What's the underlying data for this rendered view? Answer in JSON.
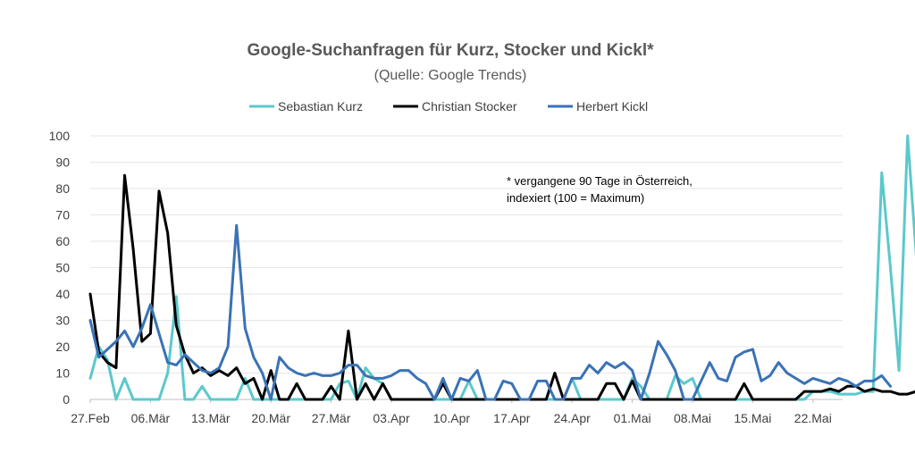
{
  "chart_data": {
    "type": "line",
    "title": "Google-Suchanfragen für Kurz, Stocker und Kickl*",
    "subtitle": "(Quelle: Google Trends)",
    "note_lines": [
      "* vergangene 90 Tage in Österreich,",
      "indexiert (100 = Maximum)"
    ],
    "x_tick_labels": [
      "27.Feb",
      "06.Mär",
      "13.Mär",
      "20.Mär",
      "27.Mär",
      "03.Apr",
      "10.Apr",
      "17.Apr",
      "24.Apr",
      "01.Mai",
      "08.Mai",
      "15.Mai",
      "22.Mai"
    ],
    "x_tick_step_days": 7,
    "ylim": [
      0,
      100
    ],
    "y_ticks": [
      0,
      10,
      20,
      30,
      40,
      50,
      60,
      70,
      80,
      90,
      100
    ],
    "grid": true,
    "legend_position": "top",
    "series": [
      {
        "name": "Sebastian Kurz",
        "color": "#5cc8cc",
        "values": [
          8,
          20,
          15,
          0,
          8,
          0,
          0,
          0,
          0,
          10,
          39,
          0,
          0,
          5,
          0,
          0,
          0,
          0,
          8,
          0,
          0,
          0,
          0,
          0,
          0,
          0,
          0,
          0,
          0,
          6,
          7,
          0,
          12,
          8,
          6,
          0,
          0,
          0,
          0,
          0,
          0,
          0,
          0,
          0,
          7,
          0,
          0,
          0,
          0,
          0,
          0,
          0,
          0,
          0,
          0,
          0,
          8,
          0,
          0,
          0,
          0,
          0,
          0,
          8,
          5,
          0,
          0,
          0,
          9,
          6,
          8,
          0,
          0,
          0,
          0,
          0,
          0,
          0,
          0,
          0,
          0,
          0,
          0,
          0,
          3,
          3,
          3,
          2,
          2,
          2,
          3,
          3,
          86,
          50,
          11,
          100,
          55
        ]
      },
      {
        "name": "Christian Stocker",
        "color": "#000000",
        "values": [
          40,
          18,
          14,
          12,
          85,
          57,
          22,
          25,
          79,
          63,
          28,
          17,
          10,
          12,
          9,
          11,
          9,
          12,
          6,
          8,
          0,
          11,
          0,
          0,
          6,
          0,
          0,
          0,
          5,
          0,
          26,
          0,
          6,
          0,
          6,
          0,
          0,
          0,
          0,
          0,
          0,
          6,
          0,
          0,
          0,
          0,
          0,
          0,
          0,
          0,
          0,
          0,
          0,
          0,
          10,
          0,
          0,
          0,
          0,
          0,
          6,
          6,
          0,
          7,
          0,
          0,
          0,
          0,
          0,
          0,
          0,
          0,
          0,
          0,
          0,
          0,
          6,
          0,
          0,
          0,
          0,
          0,
          0,
          3,
          3,
          3,
          4,
          3,
          5,
          5,
          3,
          4,
          3,
          3,
          2,
          2,
          3,
          3
        ]
      },
      {
        "name": "Herbert Kickl",
        "color": "#3a72b5",
        "values": [
          30,
          16,
          19,
          22,
          26,
          20,
          27,
          36,
          25,
          14,
          13,
          17,
          14,
          11,
          10,
          12,
          20,
          66,
          27,
          16,
          10,
          0,
          16,
          12,
          10,
          9,
          10,
          9,
          9,
          10,
          13,
          13,
          9,
          8,
          8,
          9,
          11,
          11,
          8,
          6,
          0,
          8,
          0,
          8,
          7,
          11,
          0,
          0,
          7,
          6,
          0,
          0,
          7,
          7,
          0,
          0,
          8,
          8,
          13,
          10,
          14,
          12,
          14,
          11,
          0,
          10,
          22,
          17,
          11,
          0,
          0,
          7,
          14,
          8,
          7,
          16,
          18,
          19,
          7,
          9,
          14,
          10,
          8,
          6,
          8,
          7,
          6,
          8,
          7,
          5,
          7,
          7,
          9,
          5
        ]
      }
    ]
  }
}
